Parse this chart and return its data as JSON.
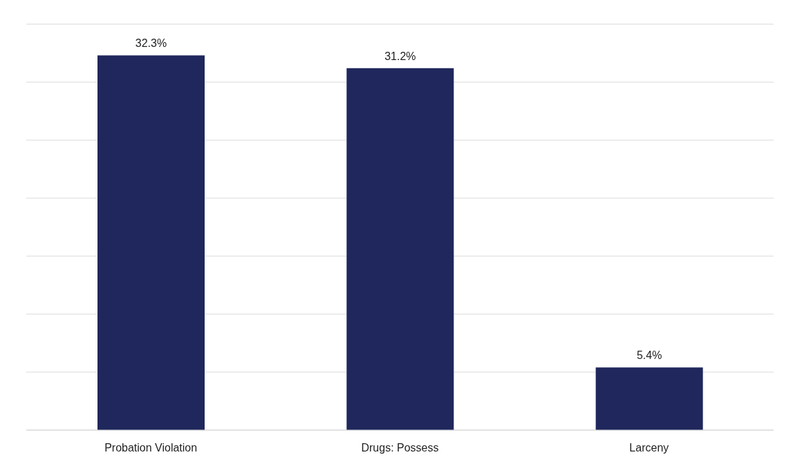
{
  "chart_data": {
    "type": "bar",
    "categories": [
      "Probation Violation",
      "Drugs: Possess",
      "Larceny"
    ],
    "values": [
      32.3,
      31.2,
      5.4
    ],
    "color": "#1f275c",
    "value_labels": [
      "32.3%",
      "31.2%",
      "5.4%"
    ],
    "ylim": [
      0,
      35
    ],
    "yticks": [
      {
        "value": 0,
        "label": null
      },
      {
        "value": 5,
        "label": null
      },
      {
        "value": 10,
        "label": null
      },
      {
        "value": 15,
        "label": null
      },
      {
        "value": 20,
        "label": null
      },
      {
        "value": 25,
        "label": null
      },
      {
        "value": 30,
        "label": null
      },
      {
        "value": 35,
        "label": null
      }
    ],
    "tick_labels": "x",
    "grid": "y"
  }
}
